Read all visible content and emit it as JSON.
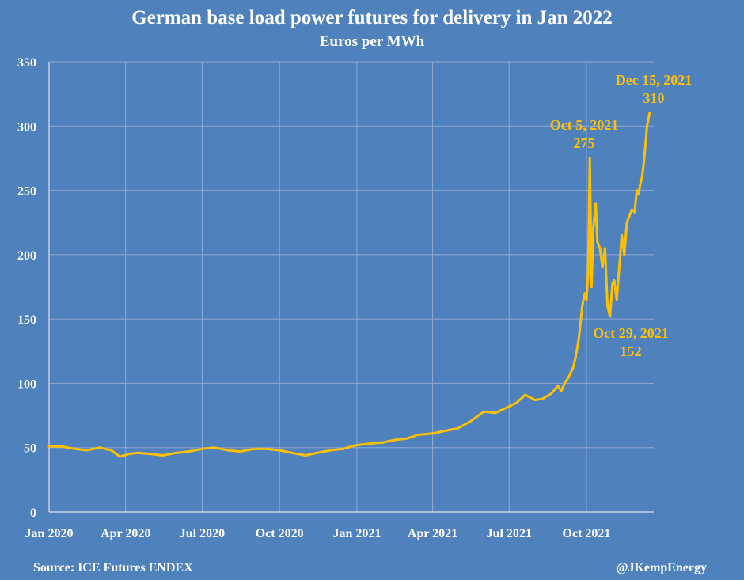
{
  "chart_data": {
    "type": "line",
    "title": "German base load power futures for delivery in Jan 2022",
    "subtitle": "Euros per MWh",
    "xlabel": "",
    "ylabel": "",
    "ylim": [
      0,
      350
    ],
    "y_ticks": [
      "0",
      "50",
      "100",
      "150",
      "200",
      "250",
      "300",
      "350"
    ],
    "x_ticks": [
      "Jan 2020",
      "Apr 2020",
      "Jul 2020",
      "Oct 2020",
      "Jan 2021",
      "Apr 2021",
      "Jul 2021",
      "Oct 2021"
    ],
    "x_range": [
      "2020-01-01",
      "2021-12-20"
    ],
    "grid": true,
    "line_color": "#ffc000",
    "background_color": "#4f81bd",
    "series": [
      {
        "x": [
          "2020-01-01",
          "2020-01-15",
          "2020-02-01",
          "2020-02-15",
          "2020-03-01",
          "2020-03-15",
          "2020-03-25",
          "2020-04-05",
          "2020-04-15",
          "2020-05-01",
          "2020-05-15",
          "2020-06-01",
          "2020-06-15",
          "2020-07-01",
          "2020-07-15",
          "2020-08-01",
          "2020-08-15",
          "2020-09-01",
          "2020-09-15",
          "2020-10-01",
          "2020-10-15",
          "2020-11-01",
          "2020-11-15",
          "2020-12-01",
          "2020-12-15",
          "2021-01-01",
          "2021-01-15",
          "2021-02-01",
          "2021-02-15",
          "2021-03-01",
          "2021-03-15",
          "2021-04-01",
          "2021-04-15",
          "2021-05-01",
          "2021-05-15",
          "2021-06-01",
          "2021-06-15",
          "2021-07-01",
          "2021-07-10",
          "2021-07-20",
          "2021-08-01",
          "2021-08-10",
          "2021-08-20",
          "2021-08-28",
          "2021-09-01",
          "2021-09-05",
          "2021-09-10",
          "2021-09-15",
          "2021-09-18",
          "2021-09-22",
          "2021-09-26",
          "2021-09-29",
          "2021-10-01",
          "2021-10-03",
          "2021-10-05",
          "2021-10-07",
          "2021-10-09",
          "2021-10-12",
          "2021-10-14",
          "2021-10-17",
          "2021-10-20",
          "2021-10-23",
          "2021-10-26",
          "2021-10-29",
          "2021-11-01",
          "2021-11-03",
          "2021-11-06",
          "2021-11-09",
          "2021-11-12",
          "2021-11-15",
          "2021-11-18",
          "2021-11-21",
          "2021-11-24",
          "2021-11-27",
          "2021-11-30",
          "2021-12-02",
          "2021-12-04",
          "2021-12-06",
          "2021-12-08",
          "2021-12-10",
          "2021-12-12",
          "2021-12-15"
        ],
        "y": [
          51,
          51,
          49,
          48,
          50,
          48,
          43,
          45,
          46,
          45,
          44,
          46,
          47,
          49,
          50,
          48,
          47,
          49,
          49,
          48,
          46,
          44,
          46,
          48,
          49,
          52,
          53,
          54,
          56,
          57,
          60,
          61,
          63,
          65,
          70,
          78,
          77,
          82,
          85,
          91,
          87,
          88,
          92,
          98,
          94,
          100,
          105,
          112,
          120,
          135,
          160,
          170,
          165,
          185,
          275,
          175,
          220,
          240,
          210,
          205,
          190,
          205,
          160,
          152,
          178,
          180,
          165,
          190,
          215,
          200,
          225,
          230,
          235,
          233,
          250,
          247,
          255,
          260,
          270,
          285,
          300,
          310
        ]
      }
    ],
    "annotations": [
      {
        "date_label": "Oct 5, 2021",
        "value_label": "275"
      },
      {
        "date_label": "Oct 29, 2021",
        "value_label": "152"
      },
      {
        "date_label": "Dec 15, 2021",
        "value_label": "310"
      }
    ]
  },
  "footer": {
    "source": "Source: ICE Futures ENDEX",
    "credit": "@JKempEnergy"
  }
}
